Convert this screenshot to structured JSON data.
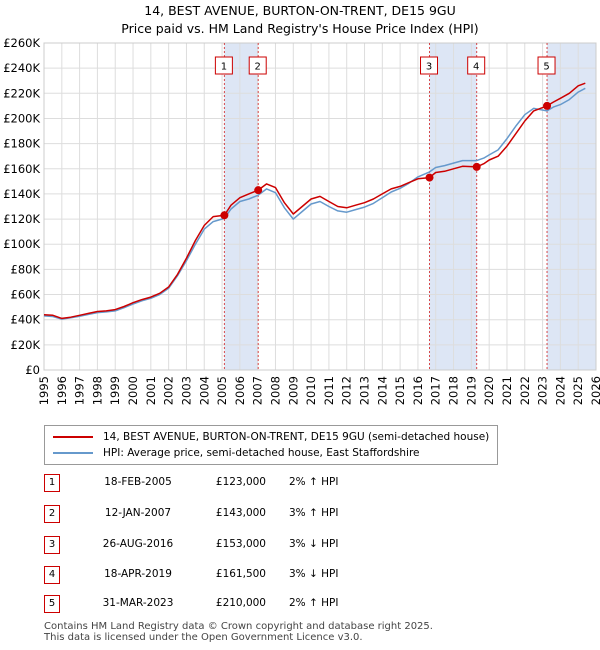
{
  "title_line1": "14, BEST AVENUE, BURTON-ON-TRENT, DE15 9GU",
  "title_line2": "Price paid vs. HM Land Registry's House Price Index (HPI)",
  "colors": {
    "price": "#cc0000",
    "hpi": "#6699cc",
    "shade": "#dde6f5",
    "grid": "#dddddd"
  },
  "chart_data": {
    "type": "line",
    "title": "14, BEST AVENUE, BURTON-ON-TRENT, DE15 9GU",
    "subtitle": "Price paid vs. HM Land Registry's House Price Index (HPI)",
    "xlabel": "",
    "ylabel": "",
    "xlim": [
      1995,
      2026
    ],
    "ylim": [
      0,
      260000
    ],
    "x_ticks": [
      "1995",
      "1996",
      "1997",
      "1998",
      "1999",
      "2000",
      "2001",
      "2002",
      "2003",
      "2004",
      "2005",
      "2006",
      "2007",
      "2008",
      "2009",
      "2010",
      "2011",
      "2012",
      "2013",
      "2014",
      "2015",
      "2016",
      "2017",
      "2018",
      "2019",
      "2020",
      "2021",
      "2022",
      "2023",
      "2024",
      "2025",
      "2026"
    ],
    "y_ticks": [
      {
        "value": 0,
        "label": "£0"
      },
      {
        "value": 20000,
        "label": "£20K"
      },
      {
        "value": 40000,
        "label": "£40K"
      },
      {
        "value": 60000,
        "label": "£60K"
      },
      {
        "value": 80000,
        "label": "£80K"
      },
      {
        "value": 100000,
        "label": "£100K"
      },
      {
        "value": 120000,
        "label": "£120K"
      },
      {
        "value": 140000,
        "label": "£140K"
      },
      {
        "value": 160000,
        "label": "£160K"
      },
      {
        "value": 180000,
        "label": "£180K"
      },
      {
        "value": 200000,
        "label": "£200K"
      },
      {
        "value": 220000,
        "label": "£220K"
      },
      {
        "value": 240000,
        "label": "£240K"
      },
      {
        "value": 260000,
        "label": "£260K"
      }
    ],
    "grid": true,
    "series": [
      {
        "name": "14, BEST AVENUE, BURTON-ON-TRENT, DE15 9GU (semi-detached house)",
        "color": "#cc0000",
        "points": [
          [
            1995.0,
            44000
          ],
          [
            1995.5,
            43500
          ],
          [
            1996.0,
            41000
          ],
          [
            1996.5,
            42000
          ],
          [
            1997.0,
            43500
          ],
          [
            1997.5,
            45000
          ],
          [
            1998.0,
            46500
          ],
          [
            1998.5,
            47000
          ],
          [
            1999.0,
            48000
          ],
          [
            1999.5,
            50500
          ],
          [
            2000.0,
            53500
          ],
          [
            2000.5,
            56000
          ],
          [
            2001.0,
            58000
          ],
          [
            2001.5,
            61000
          ],
          [
            2002.0,
            66000
          ],
          [
            2002.5,
            76000
          ],
          [
            2003.0,
            89000
          ],
          [
            2003.5,
            103000
          ],
          [
            2004.0,
            115000
          ],
          [
            2004.5,
            122000
          ],
          [
            2005.13,
            123000
          ],
          [
            2005.5,
            131000
          ],
          [
            2006.0,
            137000
          ],
          [
            2006.5,
            140000
          ],
          [
            2007.03,
            143000
          ],
          [
            2007.5,
            148000
          ],
          [
            2008.0,
            145000
          ],
          [
            2008.5,
            133000
          ],
          [
            2009.0,
            124000
          ],
          [
            2009.5,
            130000
          ],
          [
            2010.0,
            136000
          ],
          [
            2010.5,
            138000
          ],
          [
            2011.0,
            134000
          ],
          [
            2011.5,
            130000
          ],
          [
            2012.0,
            129000
          ],
          [
            2012.5,
            131000
          ],
          [
            2013.0,
            133000
          ],
          [
            2013.5,
            136000
          ],
          [
            2014.0,
            140000
          ],
          [
            2014.5,
            144000
          ],
          [
            2015.0,
            146000
          ],
          [
            2015.5,
            149000
          ],
          [
            2016.0,
            152000
          ],
          [
            2016.65,
            153000
          ],
          [
            2017.0,
            157000
          ],
          [
            2017.5,
            158000
          ],
          [
            2018.0,
            160000
          ],
          [
            2018.5,
            162000
          ],
          [
            2019.3,
            161500
          ],
          [
            2019.7,
            164000
          ],
          [
            2020.0,
            167000
          ],
          [
            2020.5,
            170000
          ],
          [
            2021.0,
            178000
          ],
          [
            2021.5,
            188000
          ],
          [
            2022.0,
            198000
          ],
          [
            2022.5,
            206000
          ],
          [
            2023.25,
            210000
          ],
          [
            2023.6,
            213000
          ],
          [
            2024.0,
            216000
          ],
          [
            2024.5,
            220000
          ],
          [
            2025.0,
            226000
          ],
          [
            2025.4,
            228000
          ]
        ]
      },
      {
        "name": "HPI: Average price, semi-detached house, East Staffordshire",
        "color": "#6699cc",
        "points": [
          [
            1995.0,
            43000
          ],
          [
            1995.5,
            42500
          ],
          [
            1996.0,
            40500
          ],
          [
            1996.5,
            41500
          ],
          [
            1997.0,
            42800
          ],
          [
            1997.5,
            44200
          ],
          [
            1998.0,
            45600
          ],
          [
            1998.5,
            46200
          ],
          [
            1999.0,
            47000
          ],
          [
            1999.5,
            49500
          ],
          [
            2000.0,
            52500
          ],
          [
            2000.5,
            55000
          ],
          [
            2001.0,
            57000
          ],
          [
            2001.5,
            60000
          ],
          [
            2002.0,
            65000
          ],
          [
            2002.5,
            75000
          ],
          [
            2003.0,
            87000
          ],
          [
            2003.5,
            100000
          ],
          [
            2004.0,
            112000
          ],
          [
            2004.5,
            118000
          ],
          [
            2005.13,
            120500
          ],
          [
            2005.5,
            128000
          ],
          [
            2006.0,
            134000
          ],
          [
            2006.5,
            136000
          ],
          [
            2007.03,
            139000
          ],
          [
            2007.5,
            144000
          ],
          [
            2008.0,
            141000
          ],
          [
            2008.5,
            129000
          ],
          [
            2009.0,
            120000
          ],
          [
            2009.5,
            126000
          ],
          [
            2010.0,
            132000
          ],
          [
            2010.5,
            134000
          ],
          [
            2011.0,
            130000
          ],
          [
            2011.5,
            126500
          ],
          [
            2012.0,
            125500
          ],
          [
            2012.5,
            127500
          ],
          [
            2013.0,
            129500
          ],
          [
            2013.5,
            132500
          ],
          [
            2014.0,
            137000
          ],
          [
            2014.5,
            141500
          ],
          [
            2015.0,
            144500
          ],
          [
            2015.5,
            148500
          ],
          [
            2016.0,
            153500
          ],
          [
            2016.65,
            157500
          ],
          [
            2017.0,
            161000
          ],
          [
            2017.5,
            162500
          ],
          [
            2018.0,
            164500
          ],
          [
            2018.5,
            166500
          ],
          [
            2019.3,
            166500
          ],
          [
            2019.7,
            168500
          ],
          [
            2020.0,
            171000
          ],
          [
            2020.5,
            175000
          ],
          [
            2021.0,
            184000
          ],
          [
            2021.5,
            194000
          ],
          [
            2022.0,
            203000
          ],
          [
            2022.5,
            208000
          ],
          [
            2023.25,
            206000
          ],
          [
            2023.6,
            209000
          ],
          [
            2024.0,
            211000
          ],
          [
            2024.5,
            215000
          ],
          [
            2025.0,
            221000
          ],
          [
            2025.4,
            224000
          ]
        ]
      }
    ],
    "sales": [
      {
        "label": "1",
        "x": 2005.13,
        "price": 123000,
        "date": "18-FEB-2005",
        "price_text": "£123,000",
        "hpi_text": "2% ↑ HPI"
      },
      {
        "label": "2",
        "x": 2007.03,
        "price": 143000,
        "date": "12-JAN-2007",
        "price_text": "£143,000",
        "hpi_text": "3% ↑ HPI"
      },
      {
        "label": "3",
        "x": 2016.65,
        "price": 153000,
        "date": "26-AUG-2016",
        "price_text": "£153,000",
        "hpi_text": "3% ↓ HPI"
      },
      {
        "label": "4",
        "x": 2019.3,
        "price": 161500,
        "date": "18-APR-2019",
        "price_text": "£161,500",
        "hpi_text": "3% ↓ HPI"
      },
      {
        "label": "5",
        "x": 2023.25,
        "price": 210000,
        "date": "31-MAR-2023",
        "price_text": "£210,000",
        "hpi_text": "2% ↑ HPI"
      }
    ],
    "shaded_ranges": [
      [
        2005.13,
        2007.03
      ],
      [
        2016.65,
        2019.3
      ],
      [
        2023.25,
        2026
      ]
    ]
  },
  "legend": {
    "price_label": "14, BEST AVENUE, BURTON-ON-TRENT, DE15 9GU (semi-detached house)",
    "hpi_label": "HPI: Average price, semi-detached house, East Staffordshire"
  },
  "footer": {
    "line1": "Contains HM Land Registry data © Crown copyright and database right 2025.",
    "line2": "This data is licensed under the Open Government Licence v3.0."
  }
}
